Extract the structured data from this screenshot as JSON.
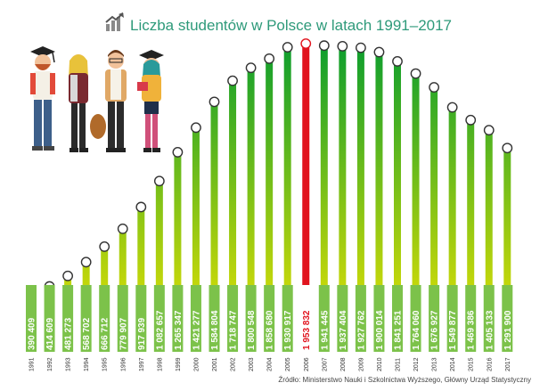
{
  "title": "Liczba studentów w Polsce w latach 1991–2017",
  "source": "Źródło: Ministerstwo Nauki i Szkolnictwa Wyższego, Główny Urząd Statystyczny",
  "icon": "chart-growth-icon",
  "illustration": "students-illustration",
  "colors": {
    "title": "#2e9a7a",
    "bar_top": "#0e9e2e",
    "bar_bottom": "#f4e600",
    "highlight_bar": "#e1141e",
    "label_bg": "#7cc24a",
    "label_text": "#ffffff",
    "highlight_label_bg": "#ffffff",
    "highlight_label_text": "#e1141e",
    "year_text": "#333333"
  },
  "chart_data": {
    "type": "bar",
    "title": "Liczba studentów w Polsce w latach 1991–2017",
    "xlabel": "",
    "ylabel": "",
    "grid": false,
    "highlight_index": 15,
    "categories": [
      "1991",
      "1992",
      "1993",
      "1994",
      "1995",
      "1996",
      "1997",
      "1998",
      "1999",
      "2000",
      "2001",
      "2002",
      "2003",
      "2004",
      "2005",
      "2006",
      "2007",
      "2008",
      "2009",
      "2010",
      "2011",
      "2012",
      "2013",
      "2014",
      "2015",
      "2016",
      "2017"
    ],
    "values": [
      390409,
      414609,
      481273,
      568702,
      666712,
      779907,
      917939,
      1082657,
      1265347,
      1421277,
      1584804,
      1718747,
      1800548,
      1858680,
      1930917,
      1953832,
      1941445,
      1937404,
      1927762,
      1900014,
      1841251,
      1764060,
      1676927,
      1549877,
      1469386,
      1405133,
      1291900
    ],
    "value_labels": [
      "390 409",
      "414 609",
      "481 273",
      "568 702",
      "666 712",
      "779 907",
      "917 939",
      "1 082 657",
      "1 265 347",
      "1 421 277",
      "1 584 804",
      "1 718 747",
      "1 800 548",
      "1 858 680",
      "1 930 917",
      "1 953 832",
      "1 941 445",
      "1 937 404",
      "1 927 762",
      "1 900 014",
      "1 841 251",
      "1 764 060",
      "1 676 927",
      "1 549 877",
      "1 469 386",
      "1 405 133",
      "1 291 900"
    ]
  }
}
